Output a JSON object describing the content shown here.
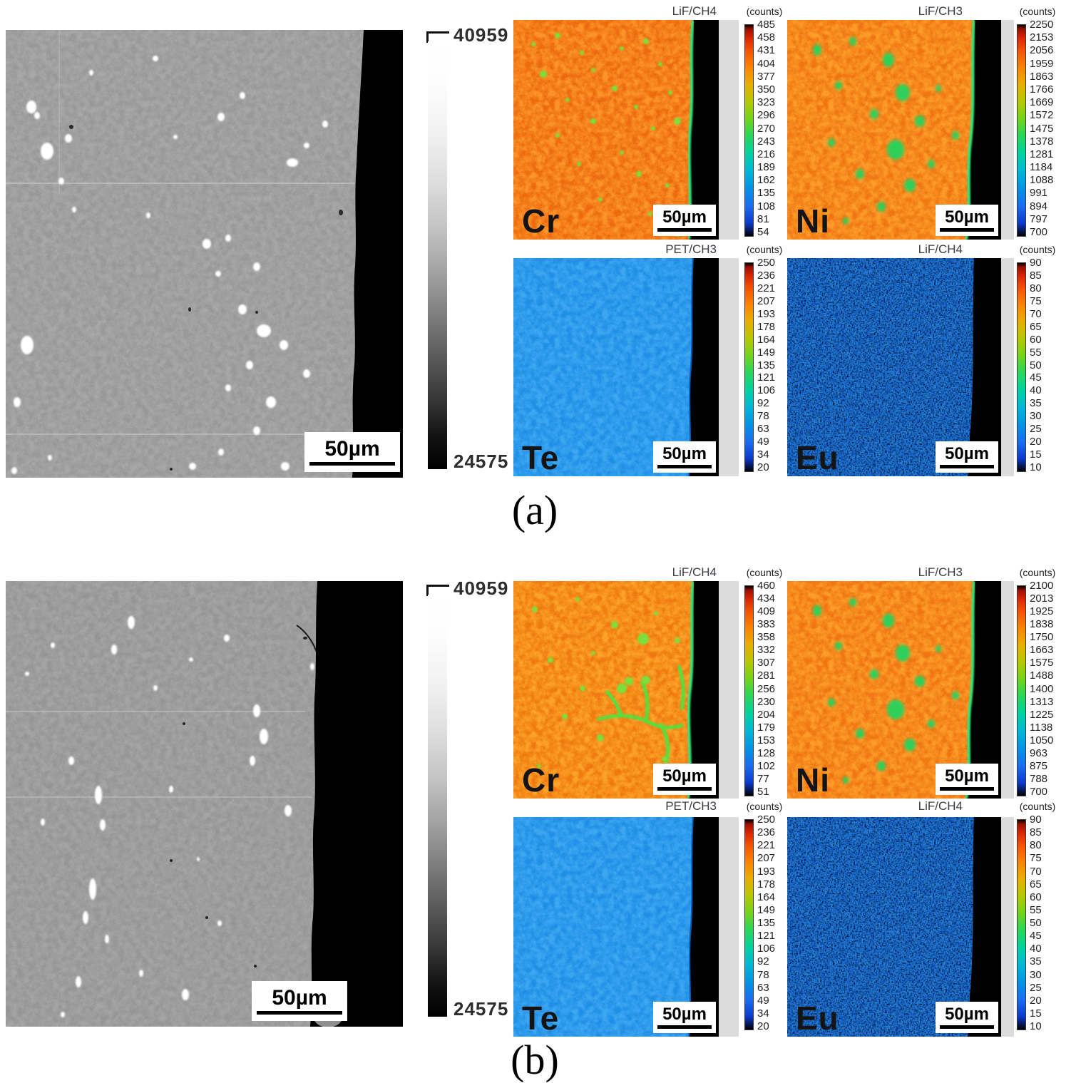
{
  "figure": {
    "panels": [
      {
        "caption": "(a)",
        "gray_max": "40959",
        "gray_min": "24575",
        "sem": {
          "scale_label": "50µm"
        },
        "maps": [
          {
            "element": "Cr",
            "detector": "LiF/CH4",
            "counts_label": "(counts)",
            "scale_label": "50µm",
            "ticks": [
              "485",
              "458",
              "431",
              "404",
              "377",
              "350",
              "323",
              "296",
              "270",
              "243",
              "216",
              "189",
              "162",
              "135",
              "108",
              "81",
              "54"
            ]
          },
          {
            "element": "Ni",
            "detector": "LiF/CH3",
            "counts_label": "(counts)",
            "scale_label": "50µm",
            "ticks": [
              "2250",
              "2153",
              "2056",
              "1959",
              "1863",
              "1766",
              "1669",
              "1572",
              "1475",
              "1378",
              "1281",
              "1184",
              "1088",
              "991",
              "894",
              "797",
              "700"
            ]
          },
          {
            "element": "Te",
            "detector": "PET/CH3",
            "counts_label": "(counts)",
            "scale_label": "50µm",
            "ticks": [
              "250",
              "236",
              "221",
              "207",
              "193",
              "178",
              "164",
              "149",
              "135",
              "121",
              "106",
              "92",
              "78",
              "63",
              "49",
              "34",
              "20"
            ]
          },
          {
            "element": "Eu",
            "detector": "LiF/CH4",
            "counts_label": "(counts)",
            "scale_label": "50µm",
            "ticks": [
              "90",
              "85",
              "80",
              "75",
              "70",
              "65",
              "60",
              "55",
              "50",
              "45",
              "40",
              "35",
              "30",
              "25",
              "20",
              "15",
              "10"
            ]
          }
        ]
      },
      {
        "caption": "(b)",
        "gray_max": "40959",
        "gray_min": "24575",
        "sem": {
          "scale_label": "50µm"
        },
        "maps": [
          {
            "element": "Cr",
            "detector": "LiF/CH4",
            "counts_label": "(counts)",
            "scale_label": "50µm",
            "ticks": [
              "460",
              "434",
              "409",
              "383",
              "358",
              "332",
              "307",
              "281",
              "256",
              "230",
              "204",
              "179",
              "153",
              "128",
              "102",
              "77",
              "51"
            ]
          },
          {
            "element": "Ni",
            "detector": "LiF/CH3",
            "counts_label": "(counts)",
            "scale_label": "50µm",
            "ticks": [
              "2100",
              "2013",
              "1925",
              "1838",
              "1750",
              "1663",
              "1575",
              "1488",
              "1400",
              "1313",
              "1225",
              "1138",
              "1050",
              "963",
              "875",
              "788",
              "700"
            ]
          },
          {
            "element": "Te",
            "detector": "PET/CH3",
            "counts_label": "(counts)",
            "scale_label": "50µm",
            "ticks": [
              "250",
              "236",
              "221",
              "207",
              "193",
              "178",
              "164",
              "149",
              "135",
              "121",
              "106",
              "92",
              "78",
              "63",
              "49",
              "34",
              "20"
            ]
          },
          {
            "element": "Eu",
            "detector": "LiF/CH4",
            "counts_label": "(counts)",
            "scale_label": "50µm",
            "ticks": [
              "90",
              "85",
              "80",
              "75",
              "70",
              "65",
              "60",
              "55",
              "50",
              "45",
              "40",
              "35",
              "30",
              "25",
              "20",
              "15",
              "10"
            ]
          }
        ]
      }
    ]
  },
  "colors": {
    "hot_map_base": "#ed690f",
    "te_map_base": "#1f8fe6",
    "eu_map_base": "#1a6ed8",
    "edge_line_green": "#2de87e",
    "sem_gray": "#a7a7a7",
    "margin_strip_gray": "#dcdcdc"
  }
}
